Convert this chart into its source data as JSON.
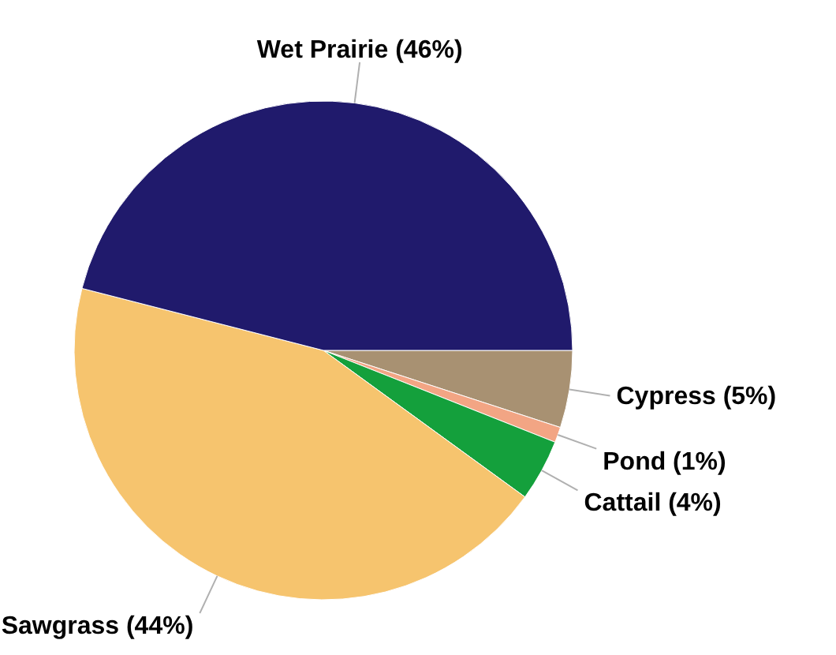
{
  "chart_data": {
    "type": "pie",
    "categories": [
      "Cypress",
      "Pond",
      "Cattail",
      "Sawgrass",
      "Wet Prairie"
    ],
    "values": [
      5,
      1,
      4,
      44,
      46
    ],
    "colors": [
      "#a89172",
      "#f2a584",
      "#14a03c",
      "#f6c46e",
      "#201a6c"
    ],
    "value_labels": [
      "(5%)",
      "(1%)",
      "(4%)",
      "(44%)",
      "(46%)"
    ]
  }
}
